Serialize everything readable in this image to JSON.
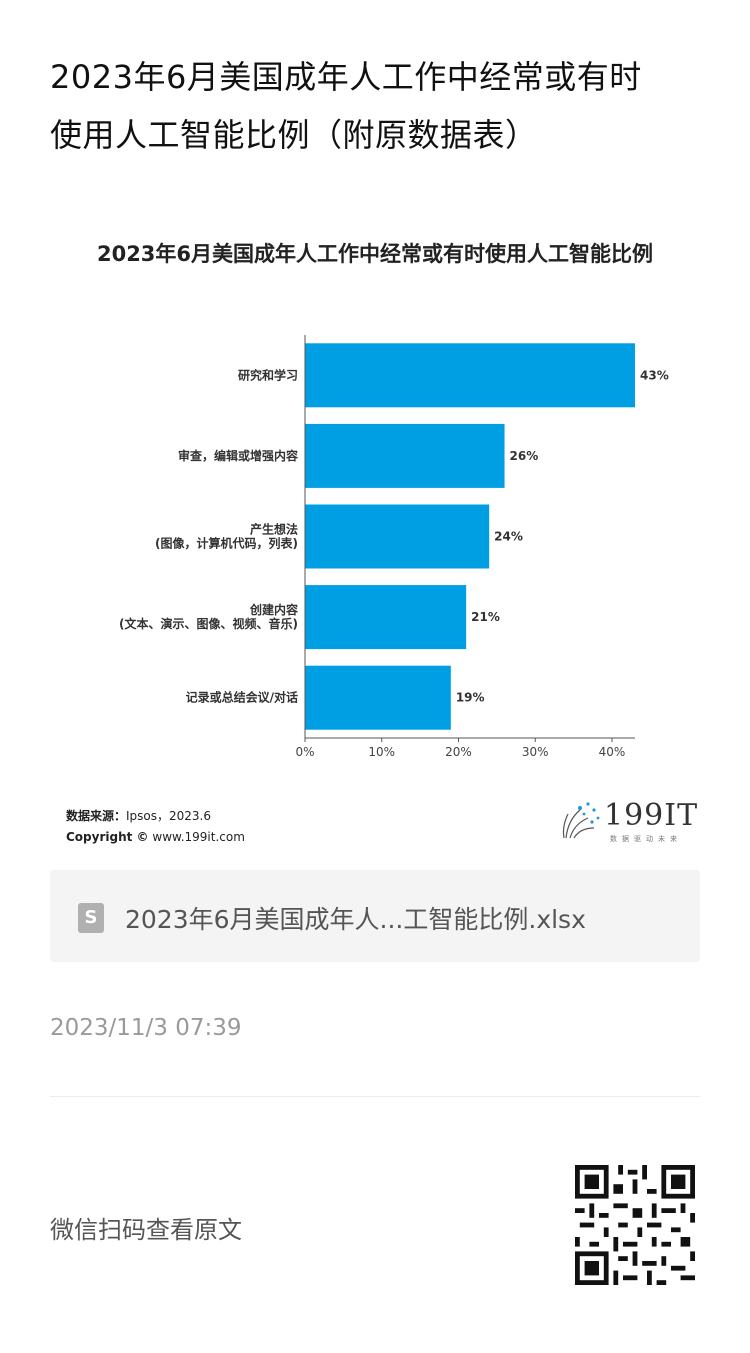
{
  "article": {
    "title_line1": "2023年6月美国成年人工作中经常或有时",
    "title_line2": "使用人工智能比例（附原数据表）"
  },
  "chart_data": {
    "type": "bar",
    "orientation": "horizontal",
    "title": "2023年6月美国成年人工作中经常或有时使用人工智能比例",
    "categories": [
      [
        "研究和学习"
      ],
      [
        "审查，编辑或增强内容"
      ],
      [
        "产生想法",
        "(图像，计算机代码，列表)"
      ],
      [
        "创建内容",
        "(文本、演示、图像、视频、音乐)"
      ],
      [
        "记录或总结会议/对话"
      ]
    ],
    "values": [
      43,
      26,
      24,
      21,
      19
    ],
    "value_labels": [
      "43%",
      "26%",
      "24%",
      "21%",
      "19%"
    ],
    "xticks": [
      "0%",
      "10%",
      "20%",
      "30%",
      "40%"
    ],
    "xlim": [
      0,
      43
    ],
    "grid": false,
    "bar_color": "#009fe3"
  },
  "source": {
    "label": "数据来源：",
    "text": "Ipsos，2023.6",
    "copyright_label": "Copyright ©",
    "copyright_text": "www.199it.com"
  },
  "logo": {
    "text": "199IT",
    "subtitle": "数据驱动未来"
  },
  "file": {
    "icon": "S",
    "name": "2023年6月美国成年人...工智能比例.xlsx"
  },
  "timestamp": "2023/11/3 07:39",
  "footer": {
    "scan_text": "微信扫码查看原文"
  }
}
